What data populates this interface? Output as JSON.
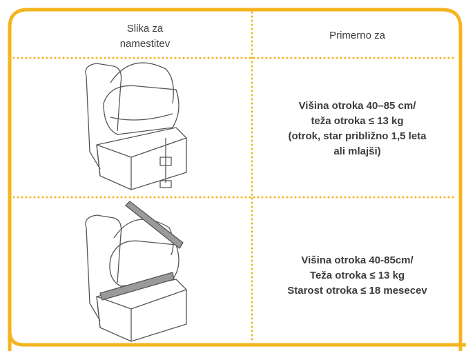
{
  "table": {
    "header": [
      [
        "Slika za",
        "namestitev"
      ],
      [
        "Primerno za"
      ]
    ],
    "rows": [
      [
        "Višina otroka 40–85 cm/",
        "teža otroka ≤ 13 kg",
        "(otrok, star približno 1,5 leta",
        "ali mlajši)"
      ],
      [
        "Višina otroka 40-85cm/",
        "Teža otroka ≤ 13 kg",
        "Starost otroka ≤ 18 mesecev"
      ]
    ]
  }
}
